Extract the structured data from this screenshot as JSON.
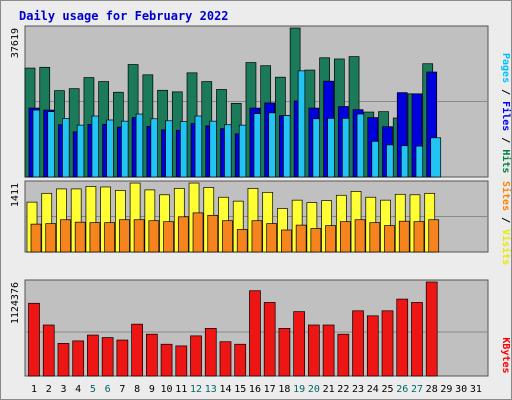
{
  "chart_data": {
    "type": "bar",
    "title": "Daily usage for February 2022",
    "categories": [
      "1",
      "2",
      "3",
      "4",
      "5",
      "6",
      "7",
      "8",
      "9",
      "10",
      "11",
      "12",
      "13",
      "14",
      "15",
      "16",
      "17",
      "18",
      "19",
      "20",
      "21",
      "22",
      "23",
      "24",
      "25",
      "26",
      "27",
      "28",
      "29",
      "30",
      "31"
    ],
    "weekend_color": "#006666",
    "weekend_categories": [
      "5",
      "6",
      "12",
      "13",
      "19",
      "20",
      "26",
      "27"
    ],
    "panels": [
      {
        "name": "hits-files-pages",
        "y_max_label": "37619",
        "ylim": [
          0,
          37619
        ],
        "side_label_parts": [
          {
            "text": "Pages",
            "color": "#00c0ff"
          },
          {
            "text": " / ",
            "color": "#000000"
          },
          {
            "text": "Files",
            "color": "#0000ff"
          },
          {
            "text": " / ",
            "color": "#000000"
          },
          {
            "text": "Hits",
            "color": "#008040"
          }
        ],
        "series": [
          {
            "name": "Hits",
            "color": "#1a7a5a",
            "values": [
              27500,
              27700,
              21800,
              22300,
              25100,
              24100,
              21400,
              28400,
              25800,
              21900,
              21500,
              26300,
              24100,
              22100,
              18600,
              28900,
              28100,
              25200,
              37619,
              27000,
              30100,
              29800,
              30400,
              16400,
              16500,
              14900,
              21000,
              28600,
              0,
              0,
              0
            ]
          },
          {
            "name": "Files",
            "color": "#0000dd",
            "values": [
              17400,
              16900,
              13200,
              11400,
              13300,
              13300,
              12600,
              15000,
              12800,
              11900,
              11800,
              13500,
              12900,
              12200,
              10900,
              17400,
              18700,
              15500,
              19200,
              17400,
              24200,
              17800,
              17000,
              15000,
              12700,
              21300,
              21000,
              26500,
              0,
              0,
              0
            ]
          },
          {
            "name": "Pages",
            "color": "#22c4f4",
            "values": [
              16900,
              16500,
              14800,
              13100,
              15400,
              14400,
              14100,
              15900,
              14700,
              14200,
              14000,
              15400,
              14100,
              13200,
              13100,
              16000,
              16200,
              15500,
              26800,
              14700,
              14800,
              14800,
              15900,
              9000,
              8100,
              7900,
              7800,
              9900,
              0,
              0,
              0
            ]
          }
        ]
      },
      {
        "name": "visits-sites",
        "y_max_label": "1411",
        "ylim": [
          0,
          1411
        ],
        "side_label_parts": [
          {
            "text": "Sites",
            "color": "#ff8000"
          },
          {
            "text": " / ",
            "color": "#000000"
          },
          {
            "text": "Visits",
            "color": "#e8e800"
          }
        ],
        "series": [
          {
            "name": "Visits",
            "color": "#ffff33",
            "values": [
              1020,
              1200,
              1290,
              1290,
              1340,
              1330,
              1260,
              1410,
              1270,
              1170,
              1300,
              1410,
              1320,
              1120,
              1040,
              1300,
              1220,
              890,
              1060,
              1010,
              1050,
              1160,
              1240,
              1120,
              1060,
              1180,
              1170,
              1200,
              0,
              0,
              0
            ]
          },
          {
            "name": "Sites",
            "color": "#f5841f",
            "values": [
              570,
              580,
              660,
              610,
              600,
              600,
              660,
              660,
              640,
              620,
              720,
              800,
              750,
              640,
              460,
              640,
              580,
              450,
              550,
              480,
              540,
              620,
              660,
              600,
              540,
              630,
              620,
              660,
              0,
              0,
              0
            ]
          }
        ]
      },
      {
        "name": "kbytes",
        "y_max_label": "1124376",
        "ylim": [
          0,
          1124376
        ],
        "side_label_parts": [
          {
            "text": "KBytes",
            "color": "#ff0000"
          }
        ],
        "series": [
          {
            "name": "KBytes",
            "color": "#ee1515",
            "values": [
              870000,
              610000,
              390000,
              420000,
              490000,
              460000,
              430000,
              620000,
              500000,
              380000,
              360000,
              480000,
              570000,
              410000,
              380000,
              1020000,
              880000,
              570000,
              770000,
              610000,
              610000,
              500000,
              780000,
              720000,
              780000,
              920000,
              880000,
              1124376,
              0,
              0,
              0
            ]
          }
        ]
      }
    ]
  }
}
